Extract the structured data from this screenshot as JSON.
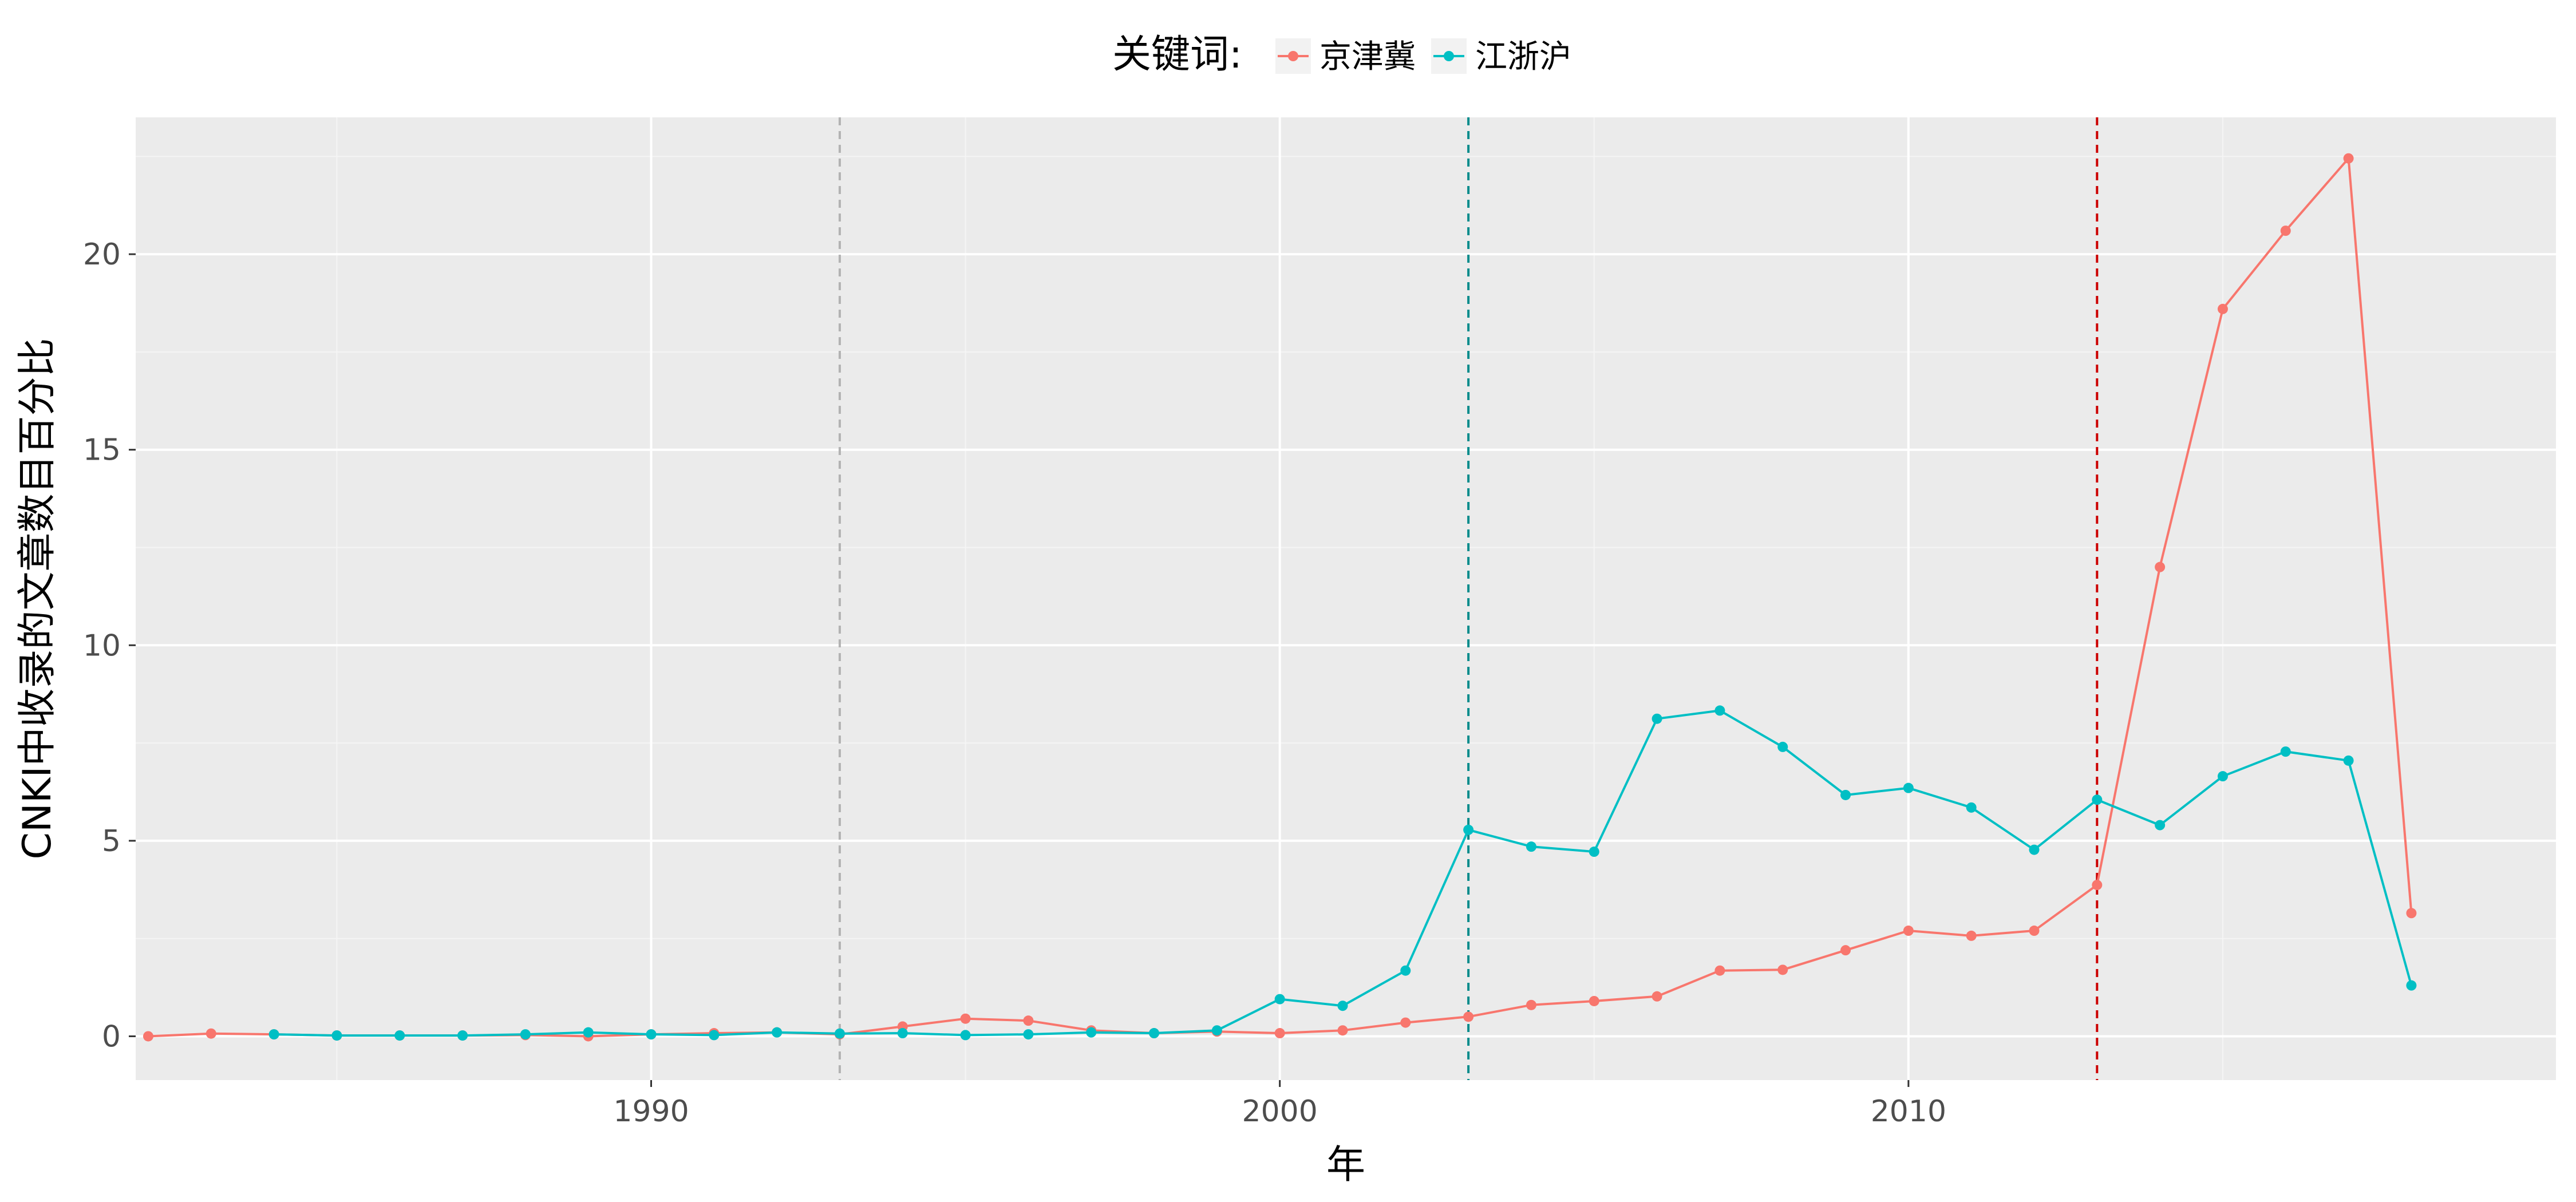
{
  "chart_data": {
    "type": "line",
    "xlabel": "年",
    "ylabel": "CNKI中收录的文章数目百分比",
    "xlim": [
      1981.8,
      2020.3
    ],
    "ylim": [
      -1.12,
      23.5
    ],
    "x_ticks": [
      1990,
      2000,
      2010
    ],
    "y_ticks": [
      0,
      5,
      10,
      15,
      20
    ],
    "grid": true,
    "legend": {
      "title": "关键词:",
      "position": "top"
    },
    "series": [
      {
        "name": "京津冀",
        "color": "#F8766D",
        "points": [
          [
            1982,
            0.0
          ],
          [
            1983,
            0.07
          ],
          [
            1984,
            0.05
          ],
          [
            1985,
            0.02
          ],
          [
            1986,
            0.02
          ],
          [
            1987,
            0.02
          ],
          [
            1988,
            0.03
          ],
          [
            1989,
            0.0
          ],
          [
            1990,
            0.05
          ],
          [
            1991,
            0.08
          ],
          [
            1992,
            0.1
          ],
          [
            1993,
            0.05
          ],
          [
            1994,
            0.25
          ],
          [
            1995,
            0.45
          ],
          [
            1996,
            0.4
          ],
          [
            1997,
            0.15
          ],
          [
            1998,
            0.08
          ],
          [
            1999,
            0.12
          ],
          [
            2000,
            0.08
          ],
          [
            2001,
            0.15
          ],
          [
            2002,
            0.35
          ],
          [
            2003,
            0.5
          ],
          [
            2004,
            0.8
          ],
          [
            2005,
            0.9
          ],
          [
            2006,
            1.02
          ],
          [
            2007,
            1.68
          ],
          [
            2008,
            1.7
          ],
          [
            2009,
            2.2
          ],
          [
            2010,
            2.7
          ],
          [
            2011,
            2.57
          ],
          [
            2012,
            2.7
          ],
          [
            2013,
            3.87
          ],
          [
            2014,
            12.0
          ],
          [
            2015,
            18.6
          ],
          [
            2016,
            20.6
          ],
          [
            2017,
            22.45
          ],
          [
            2018,
            3.15
          ]
        ]
      },
      {
        "name": "江浙沪",
        "color": "#00BFC4",
        "points": [
          [
            1984,
            0.05
          ],
          [
            1985,
            0.02
          ],
          [
            1986,
            0.02
          ],
          [
            1987,
            0.02
          ],
          [
            1988,
            0.05
          ],
          [
            1989,
            0.1
          ],
          [
            1990,
            0.05
          ],
          [
            1991,
            0.03
          ],
          [
            1992,
            0.1
          ],
          [
            1993,
            0.07
          ],
          [
            1994,
            0.08
          ],
          [
            1995,
            0.03
          ],
          [
            1996,
            0.05
          ],
          [
            1997,
            0.1
          ],
          [
            1998,
            0.08
          ],
          [
            1999,
            0.15
          ],
          [
            2000,
            0.95
          ],
          [
            2001,
            0.78
          ],
          [
            2002,
            1.68
          ],
          [
            2003,
            5.28
          ],
          [
            2004,
            4.85
          ],
          [
            2005,
            4.72
          ],
          [
            2006,
            8.12
          ],
          [
            2007,
            8.33
          ],
          [
            2008,
            7.4
          ],
          [
            2009,
            6.17
          ],
          [
            2010,
            6.35
          ],
          [
            2011,
            5.85
          ],
          [
            2012,
            4.77
          ],
          [
            2013,
            6.05
          ],
          [
            2014,
            5.4
          ],
          [
            2015,
            6.65
          ],
          [
            2016,
            7.28
          ],
          [
            2017,
            7.05
          ],
          [
            2018,
            1.3
          ]
        ]
      }
    ],
    "reference_lines": [
      {
        "x": 1993,
        "color": "#B3B3B3"
      },
      {
        "x": 2003,
        "color": "#008B8B"
      },
      {
        "x": 2013,
        "color": "#CC0000"
      }
    ]
  }
}
